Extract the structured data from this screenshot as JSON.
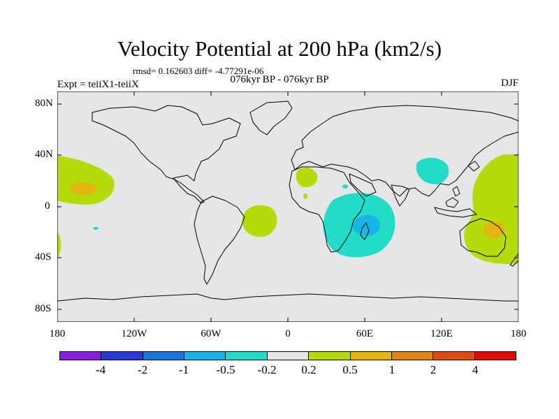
{
  "title": "Velocity Potential at 200 hPa (km2/s)",
  "stats": "rmsd= 0.162603  diff= -4.77291e-06",
  "subtitle": "076kyr BP - 076kyr BP",
  "left_label": "Expt = teiiX1-teiiX",
  "right_label": "DJF",
  "axes": {
    "lat_ticks": [
      "80N",
      "40N",
      "0",
      "40S",
      "80S"
    ],
    "lon_ticks": [
      "180",
      "120W",
      "60W",
      "0",
      "60E",
      "120E",
      "180"
    ]
  },
  "colorbar": {
    "colors": [
      "#8a1ee0",
      "#2a3ad8",
      "#1a78dc",
      "#18b4e4",
      "#20dcc8",
      "#e6e6e6",
      "#b4dc0a",
      "#e2b40c",
      "#e28414",
      "#e04c0e",
      "#e40a08"
    ],
    "labels": [
      "-4",
      "-2",
      "-1",
      "-0.5",
      "-0.2",
      "0.2",
      "0.5",
      "1",
      "2",
      "4"
    ]
  },
  "colors": {
    "background": "#e6e6e6",
    "positive_light": "#b4dc0a",
    "positive_mid": "#e2b40c",
    "negative_light": "#20dcc8",
    "negative_mid": "#18b4e4"
  }
}
